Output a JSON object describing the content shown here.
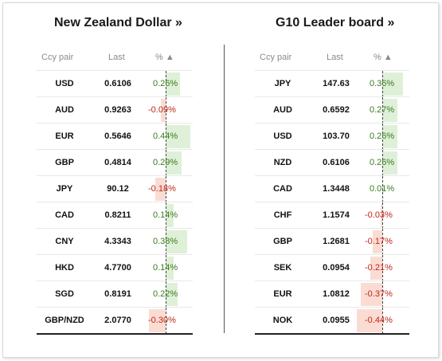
{
  "left": {
    "title": "New Zealand Dollar »",
    "headers": {
      "pair": "Ccy pair",
      "last": "Last",
      "pct": "% ▲"
    },
    "rows": [
      {
        "cur": "USD",
        "last": "0.6106",
        "pct": "0.26%",
        "value": 0.26
      },
      {
        "cur": "AUD",
        "last": "0.9263",
        "pct": "-0.09%",
        "value": -0.09
      },
      {
        "cur": "EUR",
        "last": "0.5646",
        "pct": "0.44%",
        "value": 0.44
      },
      {
        "cur": "GBP",
        "last": "0.4814",
        "pct": "0.29%",
        "value": 0.29
      },
      {
        "cur": "JPY",
        "last": "90.12",
        "pct": "-0.18%",
        "value": -0.18
      },
      {
        "cur": "CAD",
        "last": "0.8211",
        "pct": "0.14%",
        "value": 0.14
      },
      {
        "cur": "CNY",
        "last": "4.3343",
        "pct": "0.38%",
        "value": 0.38
      },
      {
        "cur": "HKD",
        "last": "4.7700",
        "pct": "0.14%",
        "value": 0.14
      },
      {
        "cur": "SGD",
        "last": "0.8191",
        "pct": "0.22%",
        "value": 0.22
      },
      {
        "cur": "GBP/NZD",
        "last": "2.0770",
        "pct": "-0.30%",
        "value": -0.3
      }
    ]
  },
  "right": {
    "title": "G10 Leader board »",
    "headers": {
      "pair": "Ccy pair",
      "last": "Last",
      "pct": "% ▲"
    },
    "rows": [
      {
        "cur": "JPY",
        "last": "147.63",
        "pct": "0.36%",
        "value": 0.36
      },
      {
        "cur": "AUD",
        "last": "0.6592",
        "pct": "0.27%",
        "value": 0.27
      },
      {
        "cur": "USD",
        "last": "103.70",
        "pct": "0.26%",
        "value": 0.26
      },
      {
        "cur": "NZD",
        "last": "0.6106",
        "pct": "0.26%",
        "value": 0.26
      },
      {
        "cur": "CAD",
        "last": "1.3448",
        "pct": "0.01%",
        "value": 0.01
      },
      {
        "cur": "CHF",
        "last": "1.1574",
        "pct": "-0.03%",
        "value": -0.03
      },
      {
        "cur": "GBP",
        "last": "1.2681",
        "pct": "-0.17%",
        "value": -0.17
      },
      {
        "cur": "SEK",
        "last": "0.0954",
        "pct": "-0.21%",
        "value": -0.21
      },
      {
        "cur": "EUR",
        "last": "1.0812",
        "pct": "-0.37%",
        "value": -0.37
      },
      {
        "cur": "NOK",
        "last": "0.0955",
        "pct": "-0.44%",
        "value": -0.44
      }
    ]
  },
  "colors": {
    "positive_text": "#3a7a1e",
    "negative_text": "#c0261a",
    "positive_bar": "#dff0d8",
    "negative_bar": "#fbdcd3"
  }
}
